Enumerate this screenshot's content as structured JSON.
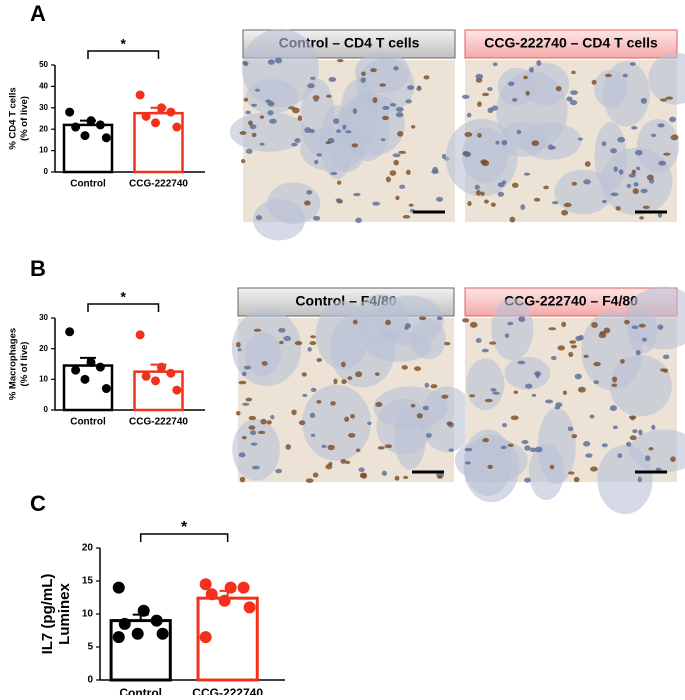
{
  "panels": [
    "A",
    "B",
    "C"
  ],
  "image_titles": [
    "Control – CD4 T cells",
    "CCG-222740 – CD4 T cells",
    "Control – F4/80",
    "CCG-222740 – F4/80"
  ],
  "chart_data": [
    {
      "type": "bar",
      "ylabel": [
        "% CD4 T cells",
        "(% of live)"
      ],
      "categories": [
        "Control",
        "CCG-222740"
      ],
      "values": [
        22,
        27.5
      ],
      "errors": [
        2,
        2.5
      ],
      "colors": [
        "#000000",
        "#f2301c"
      ],
      "points": [
        [
          28,
          24,
          22,
          21,
          17,
          16
        ],
        [
          36,
          30,
          28,
          26,
          23,
          21
        ]
      ],
      "ylim": [
        0,
        50
      ],
      "yticks": [
        0,
        10,
        20,
        30,
        40,
        50
      ],
      "annotation": "*"
    },
    {
      "type": "bar",
      "ylabel": [
        "% Macrophages",
        "(% of live)"
      ],
      "categories": [
        "Control",
        "CCG-222740"
      ],
      "values": [
        14.5,
        12.5
      ],
      "errors": [
        2.5,
        2.3
      ],
      "colors": [
        "#000000",
        "#f2301c"
      ],
      "points": [
        [
          25.5,
          15.5,
          14,
          13,
          10,
          7
        ],
        [
          24.5,
          14,
          12,
          11,
          9.5,
          6.5
        ]
      ],
      "ylim": [
        0,
        30
      ],
      "yticks": [
        0,
        10,
        20,
        30
      ],
      "annotation": "*"
    },
    {
      "type": "bar",
      "ylabel": [
        "IL7 (pg/mL)",
        "Luminex"
      ],
      "categories": [
        "Control",
        "CCG-222740"
      ],
      "values": [
        9,
        12.4
      ],
      "errors": [
        0.9,
        1.1
      ],
      "colors": [
        "#000000",
        "#f2301c"
      ],
      "points": [
        [
          14,
          10.5,
          9,
          8.5,
          7,
          7,
          6.5
        ],
        [
          14.5,
          14,
          14,
          13,
          12,
          11,
          6.5
        ]
      ],
      "ylim": [
        0,
        20
      ],
      "yticks": [
        0,
        5,
        10,
        15,
        20
      ],
      "annotation": "*"
    }
  ]
}
